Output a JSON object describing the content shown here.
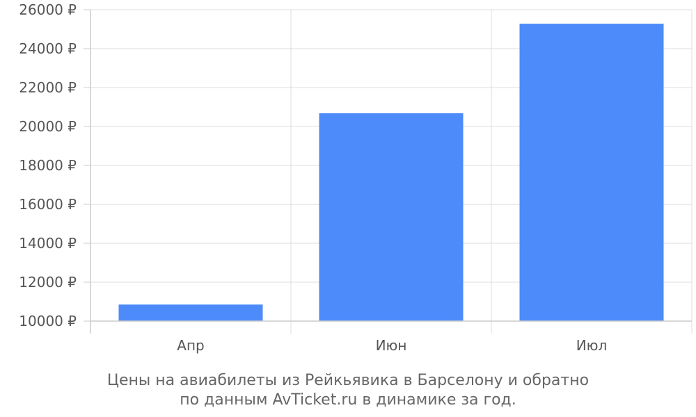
{
  "chart_data": {
    "type": "bar",
    "categories": [
      "Апр",
      "Июн",
      "Июл"
    ],
    "values": [
      10850,
      20680,
      25280
    ],
    "ylim": [
      10000,
      26000
    ],
    "yticks": [
      10000,
      12000,
      14000,
      16000,
      18000,
      20000,
      22000,
      24000,
      26000
    ],
    "ytick_labels": [
      "10000 ₽",
      "12000 ₽",
      "14000 ₽",
      "16000 ₽",
      "18000 ₽",
      "20000 ₽",
      "22000 ₽",
      "24000 ₽",
      "26000 ₽"
    ],
    "grid": true,
    "bar_color": "#4c8bf9",
    "caption_lines": [
      "Цены на авиабилеты из Рейкьявика в Барселону и обратно",
      "по данным AvTicket.ru в динамике за год."
    ]
  }
}
